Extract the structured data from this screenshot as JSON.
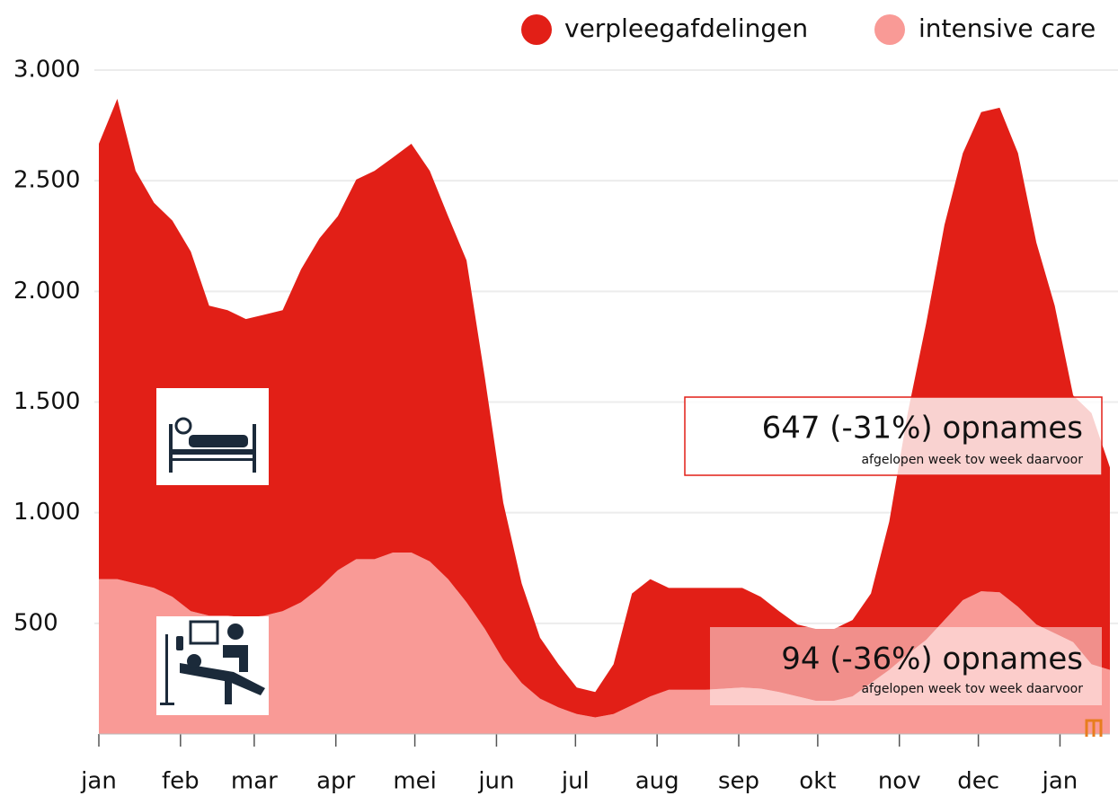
{
  "chart_data": {
    "type": "stacked-area",
    "months": [
      "jan",
      "feb",
      "mar",
      "apr",
      "mei",
      "jun",
      "jul",
      "aug",
      "sep",
      "okt",
      "nov",
      "dec",
      "jan"
    ],
    "series": [
      {
        "name": "intensive care",
        "color": "#f99a96",
        "values": [
          700,
          700,
          680,
          660,
          620,
          555,
          535,
          535,
          525,
          535,
          555,
          595,
          660,
          740,
          790,
          790,
          820,
          820,
          780,
          700,
          595,
          475,
          335,
          230,
          160,
          120,
          90,
          75,
          90,
          130,
          170,
          200,
          200,
          200,
          205,
          210,
          205,
          190,
          170,
          150,
          150,
          170,
          230,
          290,
          360,
          425,
          515,
          605,
          645,
          640,
          575,
          495,
          455,
          415,
          315,
          290
        ]
      },
      {
        "name": "verpleegafdelingen",
        "color": "#e21f17",
        "values": [
          1967,
          2170,
          1865,
          1740,
          1700,
          1625,
          1400,
          1380,
          1350,
          1360,
          1360,
          1505,
          1580,
          1600,
          1715,
          1755,
          1785,
          1847,
          1765,
          1640,
          1545,
          1135,
          710,
          450,
          275,
          195,
          120,
          115,
          225,
          505,
          530,
          460,
          460,
          460,
          455,
          450,
          415,
          365,
          325,
          325,
          325,
          345,
          405,
          670,
          1090,
          1430,
          1785,
          2020,
          2165,
          2190,
          2050,
          1725,
          1480,
          1115,
          1135,
          915
        ]
      }
    ],
    "ylim": [
      0,
      3000
    ],
    "yticks": [
      500,
      {
        "value": 1000,
        "label": "1.000"
      },
      {
        "value": 1500,
        "label": "1.500"
      },
      {
        "value": 2000,
        "label": "2.000"
      },
      {
        "value": 2500,
        "label": "2.500"
      },
      {
        "value": 3000,
        "label": "3.000"
      }
    ],
    "grid": true,
    "annotations": [
      {
        "title": "647 (-31%) opnames",
        "subtitle": "afgelopen week tov week daarvoor"
      },
      {
        "title": "94 (-36%) opnames",
        "subtitle": "afgelopen week tov week daarvoor"
      }
    ]
  }
}
